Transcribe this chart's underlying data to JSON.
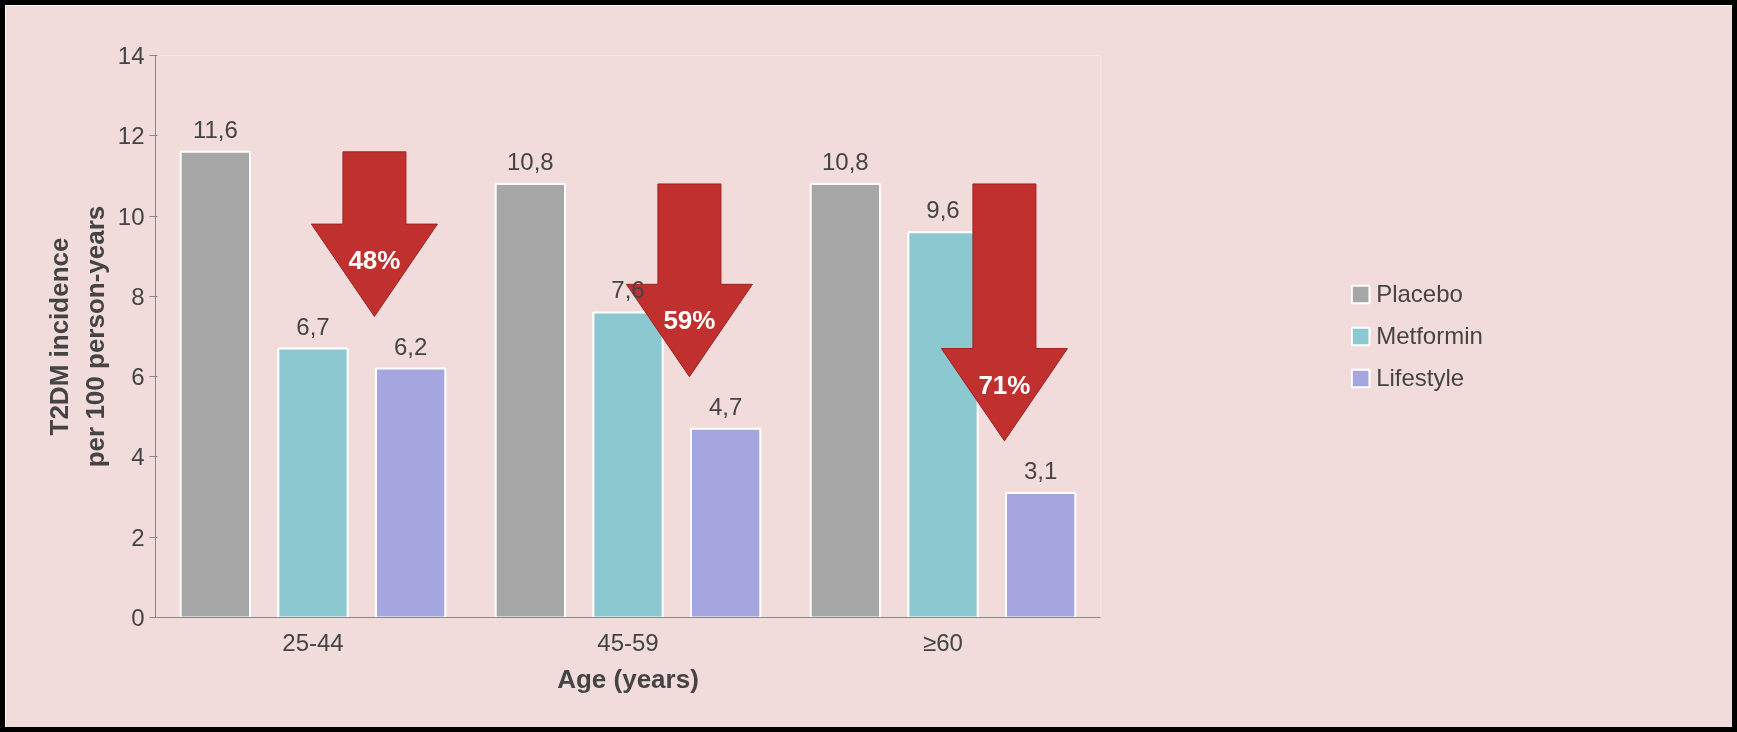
{
  "chart_data": {
    "type": "bar",
    "xlabel": "Age (years)",
    "ylabel": "T2DM incidence\nper 100 person-years",
    "categories": [
      "25-44",
      "45-59",
      "≥60"
    ],
    "series": [
      {
        "name": "Placebo",
        "color": "#a6a6a6",
        "values": [
          11.6,
          10.8,
          10.8
        ],
        "value_labels": [
          "11,6",
          "10,8",
          "10,8"
        ]
      },
      {
        "name": "Metformin",
        "color": "#8cc8d0",
        "values": [
          6.7,
          7.6,
          9.6
        ],
        "value_labels": [
          "6,7",
          "7,6",
          "9,6"
        ]
      },
      {
        "name": "Lifestyle",
        "color": "#a5a5e0",
        "values": [
          6.2,
          4.7,
          3.1
        ],
        "value_labels": [
          "6,2",
          "4,7",
          "3,1"
        ]
      }
    ],
    "ylim": [
      0,
      14
    ],
    "yticks": [
      0,
      2,
      4,
      6,
      8,
      10,
      12,
      14
    ],
    "grid": false,
    "legend": "right",
    "annotations": [
      "48%",
      "59%",
      "71%"
    ]
  }
}
